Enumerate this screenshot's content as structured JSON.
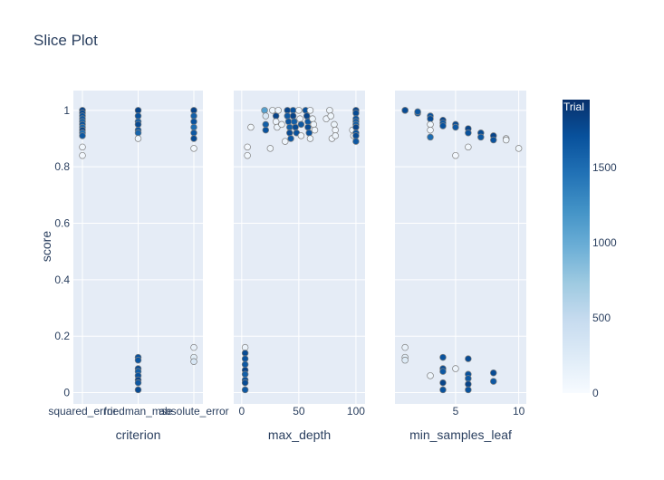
{
  "chart_data": {
    "type": "scatter",
    "title": "Slice Plot",
    "ylabel": "score",
    "ylim": [
      -0.04,
      1.07
    ],
    "y_ticks": [
      "0",
      "0.2",
      "0.4",
      "0.6",
      "0.8",
      "1"
    ],
    "y_tick_values": [
      0,
      0.2,
      0.4,
      0.6,
      0.8,
      1
    ],
    "grid": true,
    "colorbar": {
      "title": "Trial",
      "colorscale": "Blues",
      "range": [
        0,
        1950
      ],
      "ticks": [
        "0",
        "500",
        "1000",
        "1500"
      ],
      "tick_values": [
        0,
        500,
        1000,
        1500
      ]
    },
    "colors": {
      "plot_bg": "#e5ecf6",
      "grid": "#ffffff",
      "text": "#2a3f5f",
      "marker_outline": "#7f7f7f"
    },
    "panels": [
      {
        "xlabel": "criterion",
        "x_type": "category",
        "categories": [
          "squared_error",
          "friedman_mse",
          "absolute_error"
        ],
        "points": [
          {
            "x": "squared_error",
            "y": 1.0,
            "trial": 1800
          },
          {
            "x": "squared_error",
            "y": 0.99,
            "trial": 1750
          },
          {
            "x": "squared_error",
            "y": 0.98,
            "trial": 1700
          },
          {
            "x": "squared_error",
            "y": 0.97,
            "trial": 1650
          },
          {
            "x": "squared_error",
            "y": 0.96,
            "trial": 1600
          },
          {
            "x": "squared_error",
            "y": 0.95,
            "trial": 1700
          },
          {
            "x": "squared_error",
            "y": 0.94,
            "trial": 1550
          },
          {
            "x": "squared_error",
            "y": 0.93,
            "trial": 1800
          },
          {
            "x": "squared_error",
            "y": 0.92,
            "trial": 1500
          },
          {
            "x": "squared_error",
            "y": 0.91,
            "trial": 1650
          },
          {
            "x": "squared_error",
            "y": 0.87,
            "trial": 60
          },
          {
            "x": "squared_error",
            "y": 0.84,
            "trial": 40
          },
          {
            "x": "friedman_mse",
            "y": 1.0,
            "trial": 1800
          },
          {
            "x": "friedman_mse",
            "y": 0.98,
            "trial": 1700
          },
          {
            "x": "friedman_mse",
            "y": 0.96,
            "trial": 1600
          },
          {
            "x": "friedman_mse",
            "y": 0.95,
            "trial": 1750
          },
          {
            "x": "friedman_mse",
            "y": 0.93,
            "trial": 1650
          },
          {
            "x": "friedman_mse",
            "y": 0.92,
            "trial": 1550
          },
          {
            "x": "friedman_mse",
            "y": 0.9,
            "trial": 80
          },
          {
            "x": "friedman_mse",
            "y": 0.125,
            "trial": 1700
          },
          {
            "x": "friedman_mse",
            "y": 0.115,
            "trial": 1650
          },
          {
            "x": "friedman_mse",
            "y": 0.085,
            "trial": 1750
          },
          {
            "x": "friedman_mse",
            "y": 0.075,
            "trial": 1600
          },
          {
            "x": "friedman_mse",
            "y": 0.06,
            "trial": 1700
          },
          {
            "x": "friedman_mse",
            "y": 0.045,
            "trial": 1800
          },
          {
            "x": "friedman_mse",
            "y": 0.035,
            "trial": 1650
          },
          {
            "x": "friedman_mse",
            "y": 0.01,
            "trial": 1750
          },
          {
            "x": "absolute_error",
            "y": 1.0,
            "trial": 1800
          },
          {
            "x": "absolute_error",
            "y": 0.98,
            "trial": 1600
          },
          {
            "x": "absolute_error",
            "y": 0.96,
            "trial": 1700
          },
          {
            "x": "absolute_error",
            "y": 0.94,
            "trial": 1500
          },
          {
            "x": "absolute_error",
            "y": 0.92,
            "trial": 1650
          },
          {
            "x": "absolute_error",
            "y": 0.9,
            "trial": 1750
          },
          {
            "x": "absolute_error",
            "y": 0.865,
            "trial": 50
          },
          {
            "x": "absolute_error",
            "y": 0.16,
            "trial": 150
          },
          {
            "x": "absolute_error",
            "y": 0.125,
            "trial": 200
          },
          {
            "x": "absolute_error",
            "y": 0.11,
            "trial": 300
          }
        ]
      },
      {
        "xlabel": "max_depth",
        "x_type": "linear",
        "xlim": [
          -7,
          108
        ],
        "x_ticks": [
          "0",
          "50",
          "100"
        ],
        "x_tick_values": [
          0,
          50,
          100
        ],
        "points": [
          {
            "x": 3,
            "y": 0.16,
            "trial": 120
          },
          {
            "x": 3,
            "y": 0.14,
            "trial": 1750
          },
          {
            "x": 3,
            "y": 0.12,
            "trial": 1700
          },
          {
            "x": 3,
            "y": 0.1,
            "trial": 1650
          },
          {
            "x": 3,
            "y": 0.08,
            "trial": 1800
          },
          {
            "x": 3,
            "y": 0.065,
            "trial": 1600
          },
          {
            "x": 3,
            "y": 0.045,
            "trial": 1700
          },
          {
            "x": 3,
            "y": 0.035,
            "trial": 1750
          },
          {
            "x": 3,
            "y": 0.01,
            "trial": 1650
          },
          {
            "x": 5,
            "y": 0.87,
            "trial": 40
          },
          {
            "x": 5,
            "y": 0.84,
            "trial": 60
          },
          {
            "x": 8,
            "y": 0.94,
            "trial": 50
          },
          {
            "x": 20,
            "y": 1.0,
            "trial": 1100
          },
          {
            "x": 21,
            "y": 0.98,
            "trial": 300
          },
          {
            "x": 21,
            "y": 0.95,
            "trial": 1600
          },
          {
            "x": 21,
            "y": 0.93,
            "trial": 1700
          },
          {
            "x": 25,
            "y": 0.865,
            "trial": 80
          },
          {
            "x": 27,
            "y": 1.0,
            "trial": 90
          },
          {
            "x": 30,
            "y": 0.98,
            "trial": 1800
          },
          {
            "x": 30,
            "y": 0.96,
            "trial": 100
          },
          {
            "x": 31,
            "y": 0.94,
            "trial": 120
          },
          {
            "x": 32,
            "y": 1.0,
            "trial": 70
          },
          {
            "x": 35,
            "y": 0.95,
            "trial": 110
          },
          {
            "x": 38,
            "y": 0.89,
            "trial": 90
          },
          {
            "x": 40,
            "y": 1.0,
            "trial": 1800
          },
          {
            "x": 40,
            "y": 0.98,
            "trial": 1650
          },
          {
            "x": 41,
            "y": 0.96,
            "trial": 1700
          },
          {
            "x": 42,
            "y": 0.94,
            "trial": 1600
          },
          {
            "x": 42,
            "y": 0.92,
            "trial": 1750
          },
          {
            "x": 43,
            "y": 0.9,
            "trial": 1650
          },
          {
            "x": 45,
            "y": 1.0,
            "trial": 1700
          },
          {
            "x": 45,
            "y": 0.98,
            "trial": 1800
          },
          {
            "x": 46,
            "y": 0.96,
            "trial": 1600
          },
          {
            "x": 47,
            "y": 0.94,
            "trial": 1750
          },
          {
            "x": 48,
            "y": 0.92,
            "trial": 1700
          },
          {
            "x": 50,
            "y": 1.0,
            "trial": 80
          },
          {
            "x": 51,
            "y": 0.97,
            "trial": 100
          },
          {
            "x": 52,
            "y": 0.95,
            "trial": 1650
          },
          {
            "x": 52,
            "y": 0.91,
            "trial": 90
          },
          {
            "x": 56,
            "y": 1.0,
            "trial": 1700
          },
          {
            "x": 57,
            "y": 0.98,
            "trial": 1800
          },
          {
            "x": 58,
            "y": 0.96,
            "trial": 1650
          },
          {
            "x": 58,
            "y": 0.94,
            "trial": 1750
          },
          {
            "x": 59,
            "y": 0.92,
            "trial": 1700
          },
          {
            "x": 60,
            "y": 1.0,
            "trial": 60
          },
          {
            "x": 60,
            "y": 0.9,
            "trial": 80
          },
          {
            "x": 62,
            "y": 0.97,
            "trial": 110
          },
          {
            "x": 63,
            "y": 0.95,
            "trial": 90
          },
          {
            "x": 64,
            "y": 0.93,
            "trial": 70
          },
          {
            "x": 74,
            "y": 0.97,
            "trial": 100
          },
          {
            "x": 77,
            "y": 1.0,
            "trial": 90
          },
          {
            "x": 78,
            "y": 0.98,
            "trial": 80
          },
          {
            "x": 79,
            "y": 0.9,
            "trial": 70
          },
          {
            "x": 81,
            "y": 0.95,
            "trial": 110
          },
          {
            "x": 82,
            "y": 0.93,
            "trial": 60
          },
          {
            "x": 82,
            "y": 0.91,
            "trial": 90
          },
          {
            "x": 97,
            "y": 0.93,
            "trial": 80
          },
          {
            "x": 98,
            "y": 0.91,
            "trial": 70
          },
          {
            "x": 100,
            "y": 1.0,
            "trial": 1800
          },
          {
            "x": 100,
            "y": 0.99,
            "trial": 1750
          },
          {
            "x": 100,
            "y": 0.97,
            "trial": 1700
          },
          {
            "x": 100,
            "y": 0.96,
            "trial": 1650
          },
          {
            "x": 100,
            "y": 0.95,
            "trial": 1600
          },
          {
            "x": 100,
            "y": 0.94,
            "trial": 1800
          },
          {
            "x": 100,
            "y": 0.92,
            "trial": 1700
          },
          {
            "x": 100,
            "y": 0.91,
            "trial": 1750
          },
          {
            "x": 100,
            "y": 0.89,
            "trial": 1650
          }
        ]
      },
      {
        "xlabel": "min_samples_leaf",
        "x_type": "linear",
        "xlim": [
          0.2,
          10.6
        ],
        "x_ticks": [
          "5",
          "10"
        ],
        "x_tick_values": [
          5,
          10
        ],
        "points": [
          {
            "x": 1,
            "y": 1.0,
            "trial": 1800
          },
          {
            "x": 1,
            "y": 1.0,
            "trial": 1750
          },
          {
            "x": 2,
            "y": 0.99,
            "trial": 1700
          },
          {
            "x": 2,
            "y": 0.995,
            "trial": 1650
          },
          {
            "x": 3,
            "y": 0.98,
            "trial": 1700
          },
          {
            "x": 3,
            "y": 0.97,
            "trial": 1750
          },
          {
            "x": 3,
            "y": 0.95,
            "trial": 80
          },
          {
            "x": 3,
            "y": 0.93,
            "trial": 60
          },
          {
            "x": 3,
            "y": 0.905,
            "trial": 1500
          },
          {
            "x": 4,
            "y": 0.965,
            "trial": 1800
          },
          {
            "x": 4,
            "y": 0.955,
            "trial": 1650
          },
          {
            "x": 4,
            "y": 0.945,
            "trial": 1700
          },
          {
            "x": 5,
            "y": 0.95,
            "trial": 1750
          },
          {
            "x": 5,
            "y": 0.94,
            "trial": 1650
          },
          {
            "x": 5,
            "y": 0.84,
            "trial": 40
          },
          {
            "x": 6,
            "y": 0.935,
            "trial": 1800
          },
          {
            "x": 6,
            "y": 0.92,
            "trial": 1700
          },
          {
            "x": 6,
            "y": 0.87,
            "trial": 60
          },
          {
            "x": 7,
            "y": 0.92,
            "trial": 1750
          },
          {
            "x": 7,
            "y": 0.905,
            "trial": 1650
          },
          {
            "x": 8,
            "y": 0.91,
            "trial": 1800
          },
          {
            "x": 8,
            "y": 0.895,
            "trial": 1700
          },
          {
            "x": 9,
            "y": 0.9,
            "trial": 100
          },
          {
            "x": 9,
            "y": 0.895,
            "trial": 80
          },
          {
            "x": 10,
            "y": 0.865,
            "trial": 50
          },
          {
            "x": 1,
            "y": 0.16,
            "trial": 150
          },
          {
            "x": 1,
            "y": 0.125,
            "trial": 200
          },
          {
            "x": 1,
            "y": 0.115,
            "trial": 250
          },
          {
            "x": 3,
            "y": 0.06,
            "trial": 90
          },
          {
            "x": 4,
            "y": 0.125,
            "trial": 1700
          },
          {
            "x": 4,
            "y": 0.085,
            "trial": 1750
          },
          {
            "x": 4,
            "y": 0.075,
            "trial": 1650
          },
          {
            "x": 4,
            "y": 0.035,
            "trial": 1800
          },
          {
            "x": 4,
            "y": 0.01,
            "trial": 1700
          },
          {
            "x": 5,
            "y": 0.085,
            "trial": 90
          },
          {
            "x": 6,
            "y": 0.12,
            "trial": 1750
          },
          {
            "x": 6,
            "y": 0.065,
            "trial": 1700
          },
          {
            "x": 6,
            "y": 0.05,
            "trial": 1650
          },
          {
            "x": 6,
            "y": 0.03,
            "trial": 1800
          },
          {
            "x": 6,
            "y": 0.01,
            "trial": 1700
          },
          {
            "x": 8,
            "y": 0.07,
            "trial": 1750
          },
          {
            "x": 8,
            "y": 0.04,
            "trial": 1650
          }
        ]
      }
    ]
  }
}
